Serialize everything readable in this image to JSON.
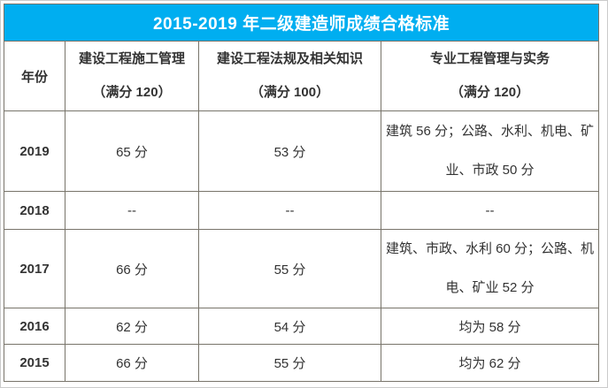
{
  "title": "2015-2019 年二级建造师成绩合格标准",
  "colors": {
    "title_bg": "#00aef0",
    "title_text": "#ffffff",
    "table_border": "#78746a",
    "body_text": "#333333",
    "frame_border": "#cbcbcb"
  },
  "table": {
    "columns": [
      {
        "label": "年份",
        "sub": ""
      },
      {
        "label": "建设工程施工管理",
        "sub": "（满分 120）"
      },
      {
        "label": "建设工程法规及相关知识",
        "sub": "（满分 100）"
      },
      {
        "label": "专业工程管理与实务",
        "sub": "（满分 120）"
      }
    ],
    "rows": [
      {
        "year": "2019",
        "management": "65 分",
        "law": "53 分",
        "practice": "建筑 56 分；公路、水利、机电、矿业、市政 50 分"
      },
      {
        "year": "2018",
        "management": "--",
        "law": "--",
        "practice": "--"
      },
      {
        "year": "2017",
        "management": "66 分",
        "law": "55 分",
        "practice": "建筑、市政、水利 60 分；公路、机电、矿业 52 分"
      },
      {
        "year": "2016",
        "management": "62 分",
        "law": "54 分",
        "practice": "均为 58 分"
      },
      {
        "year": "2015",
        "management": "66 分",
        "law": "55 分",
        "practice": "均为 62 分"
      }
    ]
  }
}
